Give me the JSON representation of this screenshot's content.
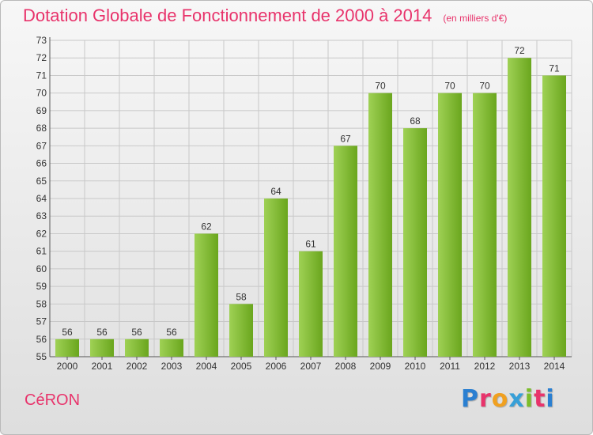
{
  "header": {
    "title": "Dotation Globale de Fonctionnement de 2000 à 2014",
    "subtitle": "(en milliers d'€)"
  },
  "footer": {
    "commune": "CéRON",
    "logo_letters": [
      "P",
      "r",
      "o",
      "x",
      "i",
      "t",
      "i"
    ],
    "logo_colors": [
      "#2a7fd1",
      "#e8336b",
      "#f0a020",
      "#37a0d8",
      "#7cbd2a",
      "#e8336b",
      "#2a7fd1"
    ]
  },
  "colors": {
    "bar_light": "#9fd155",
    "bar_dark": "#6aa61d",
    "grid": "#c8c8c8",
    "accent": "#e8336b"
  },
  "chart_data": {
    "type": "bar",
    "title": "Dotation Globale de Fonctionnement de 2000 à 2014",
    "subtitle": "(en milliers d'€)",
    "categories": [
      "2000",
      "2001",
      "2002",
      "2003",
      "2004",
      "2005",
      "2006",
      "2007",
      "2008",
      "2009",
      "2010",
      "2011",
      "2012",
      "2013",
      "2014"
    ],
    "values": [
      56,
      56,
      56,
      56,
      62,
      58,
      64,
      61,
      67,
      70,
      68,
      70,
      70,
      72,
      71
    ],
    "ylim": [
      55,
      73
    ],
    "yticks": [
      55,
      56,
      57,
      58,
      59,
      60,
      61,
      62,
      63,
      64,
      65,
      66,
      67,
      68,
      69,
      70,
      71,
      72,
      73
    ],
    "grid": true,
    "data_labels": true,
    "xlabel": "",
    "ylabel": ""
  }
}
